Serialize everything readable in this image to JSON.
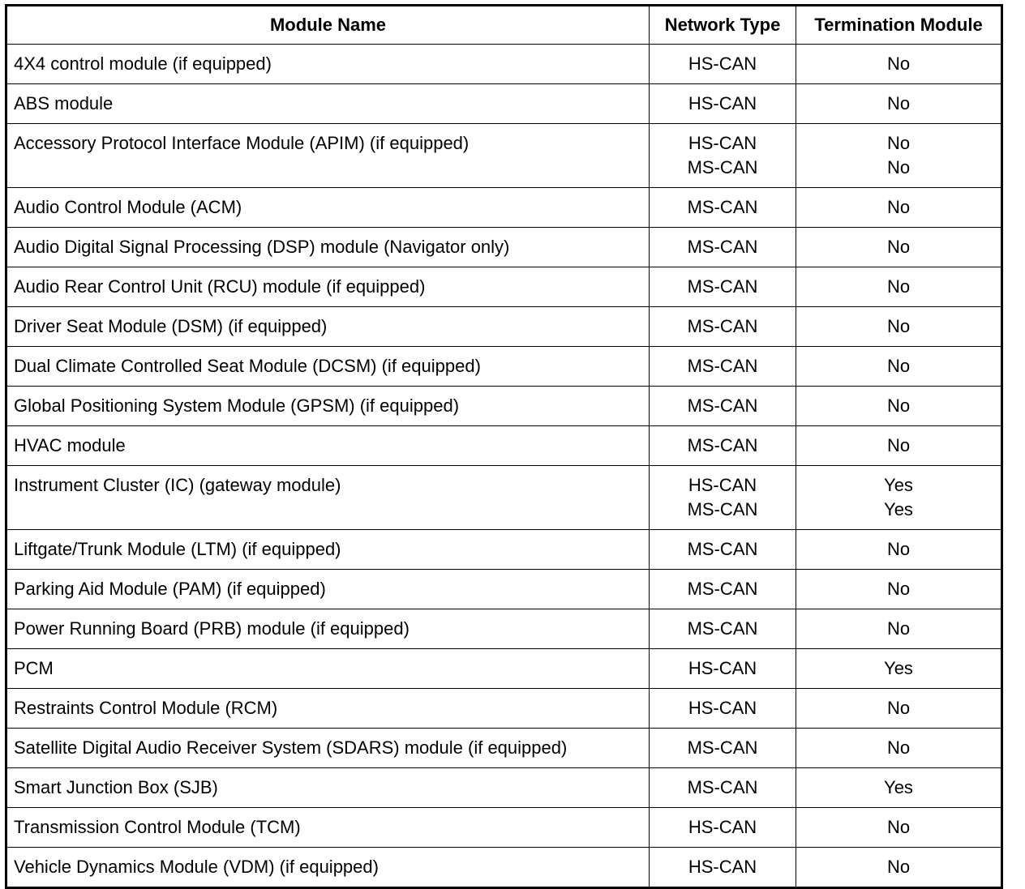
{
  "table": {
    "headers": [
      "Module Name",
      "Network Type",
      "Termination Module"
    ],
    "rows": [
      {
        "name": "4X4 control module (if equipped)",
        "network": [
          "HS-CAN"
        ],
        "termination": [
          "No"
        ]
      },
      {
        "name": "ABS module",
        "network": [
          "HS-CAN"
        ],
        "termination": [
          "No"
        ]
      },
      {
        "name": "Accessory Protocol Interface Module (APIM) (if equipped)",
        "network": [
          "HS-CAN",
          "MS-CAN"
        ],
        "termination": [
          "No",
          "No"
        ]
      },
      {
        "name": "Audio Control Module (ACM)",
        "network": [
          "MS-CAN"
        ],
        "termination": [
          "No"
        ]
      },
      {
        "name": "Audio Digital Signal Processing (DSP) module (Navigator only)",
        "network": [
          "MS-CAN"
        ],
        "termination": [
          "No"
        ]
      },
      {
        "name": "Audio Rear Control Unit (RCU) module (if equipped)",
        "network": [
          "MS-CAN"
        ],
        "termination": [
          "No"
        ]
      },
      {
        "name": "Driver Seat Module (DSM) (if equipped)",
        "network": [
          "MS-CAN"
        ],
        "termination": [
          "No"
        ]
      },
      {
        "name": "Dual Climate Controlled Seat Module (DCSM) (if equipped)",
        "network": [
          "MS-CAN"
        ],
        "termination": [
          "No"
        ]
      },
      {
        "name": "Global Positioning System Module (GPSM) (if equipped)",
        "network": [
          "MS-CAN"
        ],
        "termination": [
          "No"
        ]
      },
      {
        "name": "HVAC module",
        "network": [
          "MS-CAN"
        ],
        "termination": [
          "No"
        ]
      },
      {
        "name": "Instrument Cluster (IC) (gateway module)",
        "network": [
          "HS-CAN",
          "MS-CAN"
        ],
        "termination": [
          "Yes",
          "Yes"
        ]
      },
      {
        "name": "Liftgate/Trunk Module (LTM) (if equipped)",
        "network": [
          "MS-CAN"
        ],
        "termination": [
          "No"
        ]
      },
      {
        "name": "Parking Aid Module (PAM) (if equipped)",
        "network": [
          "MS-CAN"
        ],
        "termination": [
          "No"
        ]
      },
      {
        "name": "Power Running Board (PRB) module (if equipped)",
        "network": [
          "MS-CAN"
        ],
        "termination": [
          "No"
        ]
      },
      {
        "name": "PCM",
        "network": [
          "HS-CAN"
        ],
        "termination": [
          "Yes"
        ]
      },
      {
        "name": "Restraints Control Module (RCM)",
        "network": [
          "HS-CAN"
        ],
        "termination": [
          "No"
        ]
      },
      {
        "name": "Satellite Digital Audio Receiver System (SDARS) module (if equipped)",
        "network": [
          "MS-CAN"
        ],
        "termination": [
          "No"
        ]
      },
      {
        "name": "Smart Junction Box (SJB)",
        "network": [
          "MS-CAN"
        ],
        "termination": [
          "Yes"
        ]
      },
      {
        "name": "Transmission Control Module (TCM)",
        "network": [
          "HS-CAN"
        ],
        "termination": [
          "No"
        ]
      },
      {
        "name": "Vehicle Dynamics Module (VDM) (if equipped)",
        "network": [
          "HS-CAN"
        ],
        "termination": [
          "No"
        ]
      }
    ]
  }
}
